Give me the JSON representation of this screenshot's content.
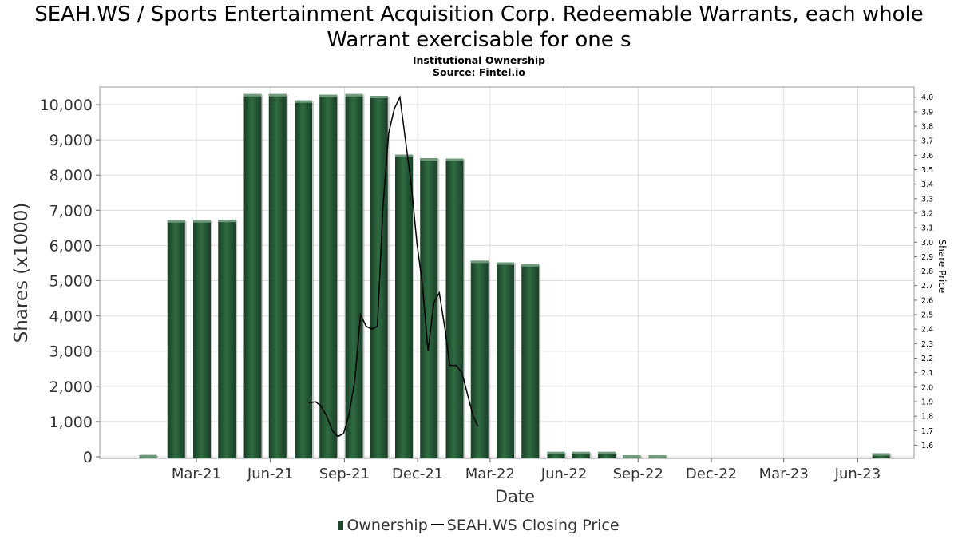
{
  "chart_data": {
    "type": "bar",
    "title": "SEAH.WS / Sports Entertainment Acquisition Corp. Redeemable Warrants, each whole Warrant exercisable for one s",
    "subtitle": [
      "Institutional Ownership",
      "Source: Fintel.io"
    ],
    "xlabel": "Date",
    "ylabel": "Shares (x1000)",
    "y2label": "Share Price",
    "x_ticks": [
      "Mar-21",
      "Jun-21",
      "Sep-21",
      "Dec-21",
      "Mar-22",
      "Jun-22",
      "Sep-22",
      "Dec-22",
      "Mar-23",
      "Jun-23"
    ],
    "y_ticks": [
      "0",
      "1,000",
      "2,000",
      "3,000",
      "4,000",
      "5,000",
      "6,000",
      "7,000",
      "8,000",
      "9,000",
      "10,000"
    ],
    "y2_ticks": [
      "1.6",
      "1.7",
      "1.8",
      "1.9",
      "2.0",
      "2.1",
      "2.2",
      "2.3",
      "2.4",
      "2.5",
      "2.6",
      "2.7",
      "2.8",
      "2.9",
      "3.0",
      "3.1",
      "3.2",
      "3.3",
      "3.4",
      "3.5",
      "3.6",
      "3.7",
      "3.8",
      "3.9",
      "4.0"
    ],
    "ylim": [
      0,
      10500
    ],
    "y2lim": [
      1.52,
      4.07
    ],
    "xlim": [
      "2020-11-01",
      "2023-08-10"
    ],
    "grid": true,
    "legend_position": "bottom",
    "colors": {
      "bar": "#1e4a2c",
      "bar_highlight": "#2f6b42",
      "line": "#000000",
      "grid": "#dddddd"
    },
    "series": [
      {
        "name": "Ownership",
        "kind": "bar",
        "dates": [
          "2020-12-31",
          "2021-02-04",
          "2021-03-08",
          "2021-04-08",
          "2021-05-10",
          "2021-06-10",
          "2021-07-12",
          "2021-08-12",
          "2021-09-13",
          "2021-10-14",
          "2021-11-14",
          "2021-12-15",
          "2022-01-16",
          "2022-02-16",
          "2022-03-20",
          "2022-04-20",
          "2022-05-22",
          "2022-06-22",
          "2022-07-24",
          "2022-08-24",
          "2022-09-25",
          "2022-10-26",
          "2023-06-30"
        ],
        "values": [
          50,
          6720,
          6720,
          6730,
          10300,
          10300,
          10120,
          10280,
          10300,
          10250,
          8580,
          8480,
          8470,
          5570,
          5520,
          5470,
          140,
          140,
          140,
          40,
          40,
          0,
          100
        ]
      },
      {
        "name": "SEAH.WS Closing Price",
        "kind": "line",
        "segments": [
          {
            "dates": [
              "2021-07-19",
              "2021-07-27",
              "2021-08-03",
              "2021-08-10",
              "2021-08-17",
              "2021-08-24",
              "2021-08-31"
            ],
            "values": [
              1.89,
              1.9,
              1.87,
              1.8,
              1.7,
              1.66,
              1.68
            ]
          },
          {
            "dates": [
              "2021-08-31",
              "2021-09-07",
              "2021-09-14",
              "2021-09-21",
              "2021-09-28",
              "2021-10-05",
              "2021-10-12",
              "2021-10-19",
              "2021-10-26",
              "2021-11-02",
              "2021-11-09",
              "2021-11-16",
              "2021-11-23",
              "2021-11-30",
              "2021-12-07",
              "2021-12-14",
              "2021-12-21",
              "2021-12-28",
              "2022-01-04",
              "2022-01-10",
              "2022-01-18",
              "2022-01-25",
              "2022-02-01",
              "2022-02-08",
              "2022-02-14"
            ],
            "values": [
              1.68,
              1.82,
              2.05,
              2.5,
              2.42,
              2.4,
              2.42,
              3.25,
              3.75,
              3.92,
              4.0,
              3.7,
              3.4,
              3.0,
              2.7,
              2.25,
              2.58,
              2.65,
              2.4,
              2.15,
              2.15,
              2.1,
              1.95,
              1.8,
              1.73
            ]
          }
        ]
      }
    ]
  }
}
